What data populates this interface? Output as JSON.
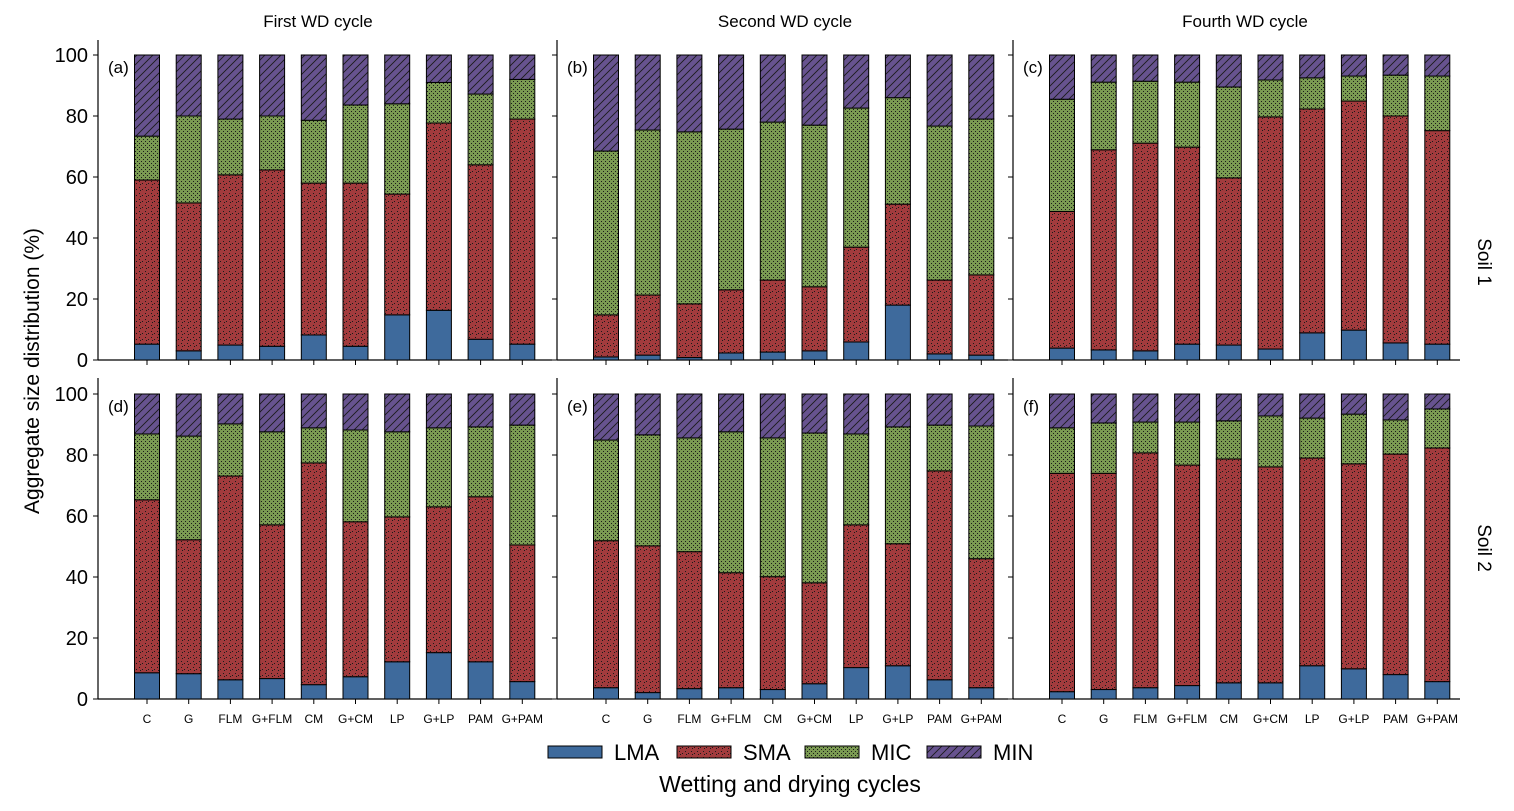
{
  "chart_data": {
    "type": "bar",
    "stacked": true,
    "ylabel": "Aggregate size distribution (%)",
    "xlabel": "Wetting and drying cycles",
    "ylim": [
      0,
      100
    ],
    "yticks": [
      0,
      20,
      40,
      60,
      80,
      100
    ],
    "grid": false,
    "legend": {
      "placement": "bottom-center",
      "entries": [
        {
          "name": "LMA",
          "color": "#3E6A9C",
          "pattern": "solid"
        },
        {
          "name": "SMA",
          "color": "#A23B3D",
          "pattern": "dots"
        },
        {
          "name": "MIC",
          "color": "#7A9A52",
          "pattern": "fine-dots"
        },
        {
          "name": "MIN",
          "color": "#67538F",
          "pattern": "diagonal-hatch"
        }
      ]
    },
    "columns": [
      "First WD cycle",
      "Second WD cycle",
      "Fourth WD cycle"
    ],
    "rows": [
      "Soil 1",
      "Soil 2"
    ],
    "categories": [
      "C",
      "G",
      "FLM",
      "G+FLM",
      "CM",
      "G+CM",
      "LP",
      "G+LP",
      "PAM",
      "G+PAM"
    ],
    "series_names": [
      "LMA",
      "SMA",
      "MIC",
      "MIN"
    ],
    "panels": [
      {
        "label": "(a)",
        "column": "First WD cycle",
        "row": "Soil 1",
        "series": [
          {
            "name": "LMA",
            "values": [
              5.2,
              3.0,
              4.9,
              4.5,
              8.2,
              4.5,
              14.8,
              16.3,
              6.8,
              5.2
            ]
          },
          {
            "name": "SMA",
            "values": [
              53.8,
              48.5,
              55.8,
              57.8,
              49.8,
              53.5,
              39.6,
              61.4,
              57.2,
              73.8
            ]
          },
          {
            "name": "MIC",
            "values": [
              14.4,
              28.5,
              18.3,
              17.7,
              20.6,
              25.6,
              29.6,
              13.3,
              23.2,
              13.0
            ]
          },
          {
            "name": "MIN",
            "values": [
              26.6,
              20.0,
              21.0,
              20.0,
              21.4,
              16.4,
              16.0,
              9.0,
              12.8,
              8.0
            ]
          }
        ]
      },
      {
        "label": "(b)",
        "column": "Second WD cycle",
        "row": "Soil 1",
        "series": [
          {
            "name": "LMA",
            "values": [
              1.0,
              1.6,
              0.8,
              2.3,
              2.6,
              3.0,
              5.9,
              18.0,
              2.0,
              1.6
            ]
          },
          {
            "name": "SMA",
            "values": [
              13.8,
              19.7,
              17.6,
              20.7,
              23.6,
              21.0,
              31.1,
              33.1,
              24.2,
              26.3
            ]
          },
          {
            "name": "MIC",
            "values": [
              53.7,
              54.1,
              56.4,
              52.7,
              51.8,
              53.0,
              45.6,
              34.9,
              50.5,
              51.1
            ]
          },
          {
            "name": "MIN",
            "values": [
              31.5,
              24.6,
              25.2,
              24.3,
              22.0,
              23.0,
              17.4,
              14.0,
              23.3,
              21.0
            ]
          }
        ]
      },
      {
        "label": "(c)",
        "column": "Fourth WD cycle",
        "row": "Soil 1",
        "series": [
          {
            "name": "LMA",
            "values": [
              3.9,
              3.3,
              3.0,
              5.2,
              4.9,
              3.6,
              8.9,
              9.8,
              5.6,
              5.2
            ]
          },
          {
            "name": "SMA",
            "values": [
              44.8,
              65.6,
              68.1,
              64.6,
              54.8,
              76.1,
              73.4,
              75.1,
              74.4,
              70.0
            ]
          },
          {
            "name": "MIC",
            "values": [
              36.8,
              22.2,
              20.3,
              21.3,
              29.8,
              12.1,
              10.2,
              8.2,
              13.4,
              17.9
            ]
          },
          {
            "name": "MIN",
            "values": [
              14.5,
              8.9,
              8.6,
              8.9,
              10.5,
              8.2,
              7.5,
              6.9,
              6.6,
              6.9
            ]
          }
        ]
      },
      {
        "label": "(d)",
        "column": "First WD cycle",
        "row": "Soil 2",
        "series": [
          {
            "name": "LMA",
            "values": [
              8.6,
              8.3,
              6.3,
              6.7,
              4.7,
              7.3,
              12.2,
              15.2,
              12.2,
              5.7
            ]
          },
          {
            "name": "SMA",
            "values": [
              56.7,
              43.9,
              66.8,
              50.4,
              72.7,
              50.8,
              47.5,
              47.8,
              54.1,
              44.8
            ]
          },
          {
            "name": "MIC",
            "values": [
              21.6,
              34.0,
              17.1,
              30.5,
              11.5,
              30.1,
              27.9,
              25.9,
              22.9,
              39.3
            ]
          },
          {
            "name": "MIN",
            "values": [
              13.1,
              13.8,
              9.8,
              12.4,
              11.1,
              11.8,
              12.4,
              11.1,
              10.8,
              10.2
            ]
          }
        ]
      },
      {
        "label": "(e)",
        "column": "Second WD cycle",
        "row": "Soil 2",
        "series": [
          {
            "name": "LMA",
            "values": [
              3.7,
              2.1,
              3.4,
              3.7,
              3.1,
              5.0,
              10.3,
              10.9,
              6.3,
              3.7
            ]
          },
          {
            "name": "SMA",
            "values": [
              48.2,
              48.1,
              44.9,
              37.7,
              37.0,
              33.1,
              46.8,
              40.0,
              68.5,
              42.3
            ]
          },
          {
            "name": "MIC",
            "values": [
              33.0,
              36.4,
              37.3,
              46.2,
              45.5,
              49.1,
              29.8,
              38.3,
              15.0,
              43.5
            ]
          },
          {
            "name": "MIN",
            "values": [
              15.1,
              13.4,
              14.4,
              12.4,
              14.4,
              12.8,
              13.1,
              10.8,
              10.2,
              10.5
            ]
          }
        ]
      },
      {
        "label": "(f)",
        "column": "Fourth WD cycle",
        "row": "Soil 2",
        "series": [
          {
            "name": "LMA",
            "values": [
              2.4,
              3.1,
              3.7,
              4.4,
              5.3,
              5.3,
              10.9,
              9.9,
              8.0,
              5.7
            ]
          },
          {
            "name": "SMA",
            "values": [
              71.6,
              70.9,
              77.0,
              72.3,
              73.4,
              70.8,
              68.1,
              67.2,
              72.3,
              76.6
            ]
          },
          {
            "name": "MIC",
            "values": [
              14.9,
              16.5,
              10.1,
              14.1,
              12.5,
              16.7,
              13.1,
              16.3,
              11.2,
              12.8
            ]
          },
          {
            "name": "MIN",
            "values": [
              11.1,
              9.5,
              9.2,
              9.2,
              8.8,
              7.2,
              7.9,
              6.6,
              8.5,
              4.9
            ]
          }
        ]
      }
    ]
  }
}
